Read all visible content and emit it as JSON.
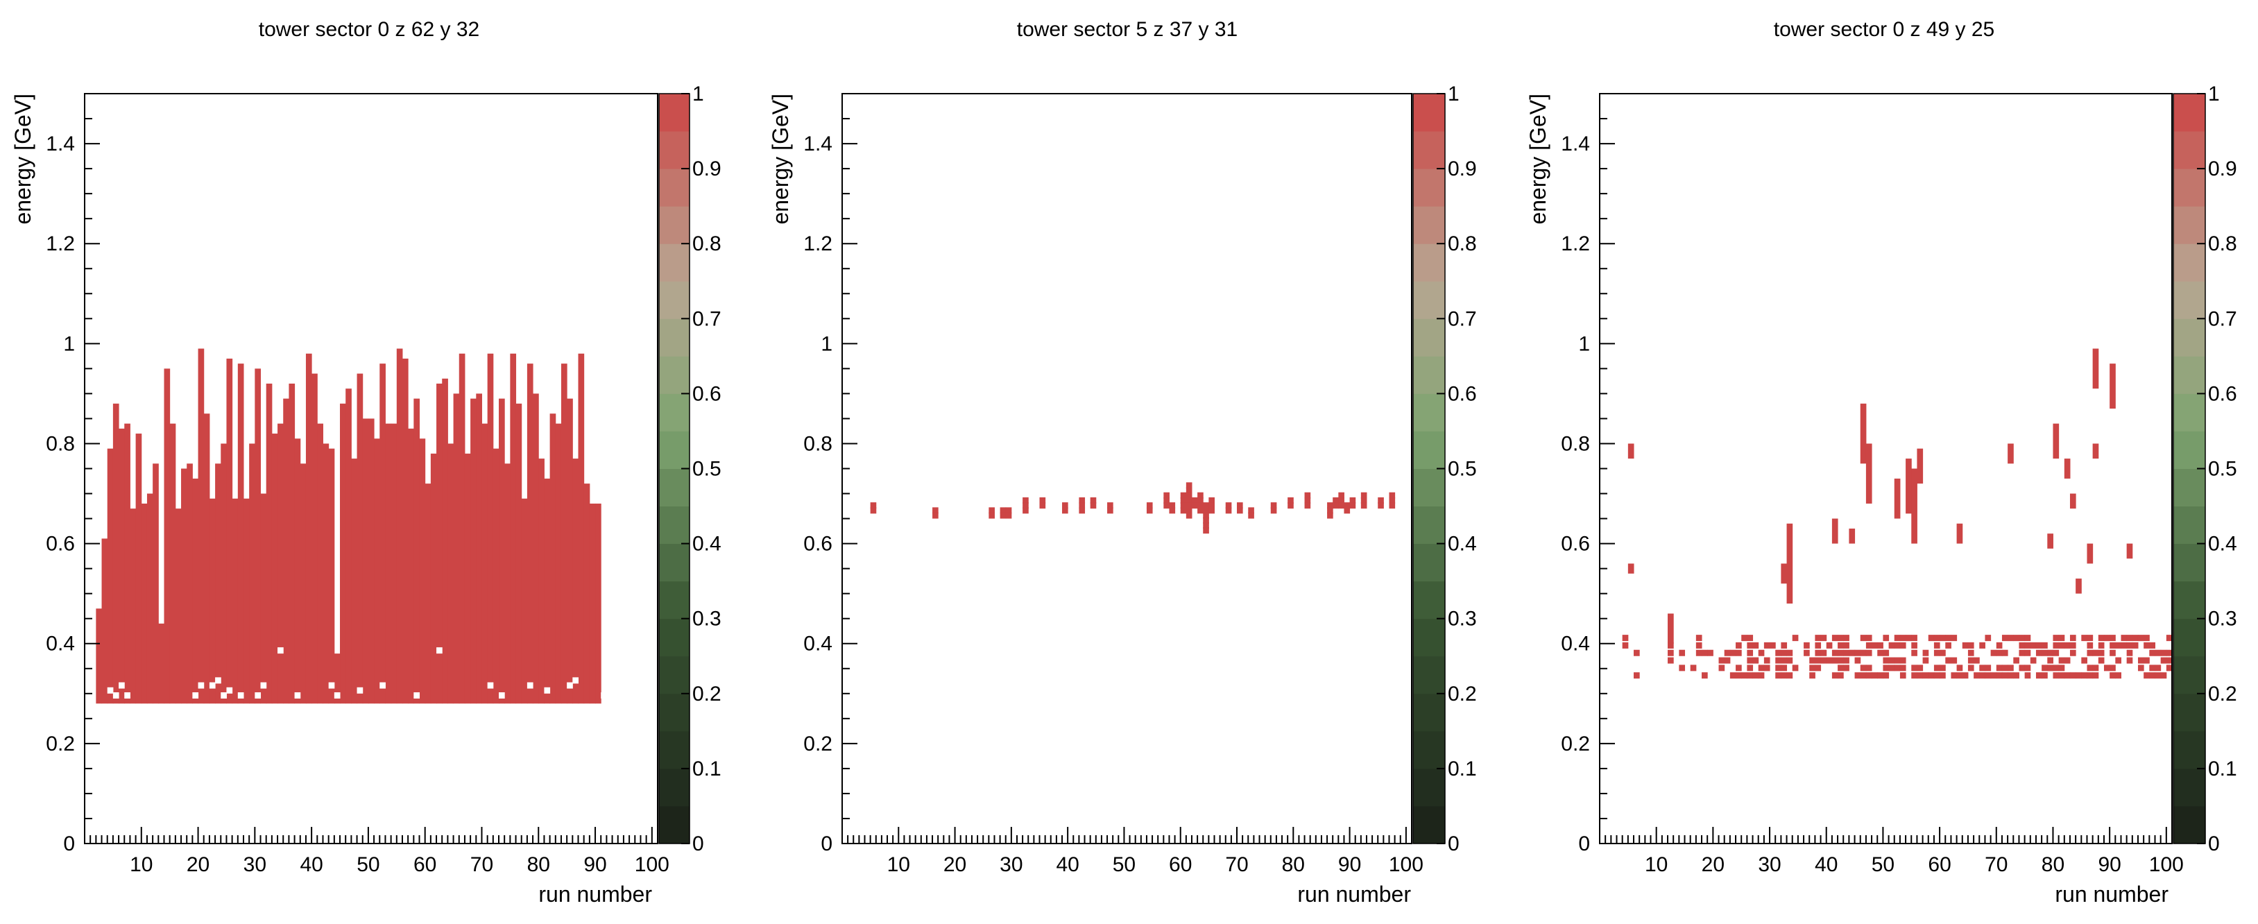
{
  "chart_data": [
    {
      "type": "heatmap",
      "title": "tower sector 0 z 62 y 32",
      "xlabel": "run number",
      "ylabel": "energy [GeV]",
      "xlim": [
        0,
        101
      ],
      "ylim": [
        0,
        1.5
      ],
      "zlim": [
        0,
        1
      ],
      "x_ticks": [
        "10",
        "20",
        "30",
        "40",
        "50",
        "60",
        "70",
        "80",
        "90",
        "100"
      ],
      "y_ticks": [
        "0",
        "0.2",
        "0.4",
        "0.6",
        "0.8",
        "1",
        "1.2",
        "1.4"
      ],
      "z_ticks": [
        "0",
        "0.1",
        "0.2",
        "0.3",
        "0.4",
        "0.5",
        "0.6",
        "0.7",
        "0.8",
        "0.9",
        "1"
      ],
      "grid": false,
      "colorbar": true,
      "series": [
        {
          "runs": [
            3,
            4,
            5,
            6,
            7,
            8,
            9,
            10,
            11,
            12,
            13,
            14,
            15,
            16,
            17,
            18,
            19,
            20,
            21,
            22,
            23,
            24,
            25,
            26,
            27,
            28,
            29,
            30,
            31,
            32,
            33,
            34,
            35,
            36,
            37,
            38,
            39,
            40,
            41,
            42,
            43,
            44,
            45,
            46,
            47,
            48,
            49,
            50,
            51,
            52,
            53,
            54,
            55,
            56,
            57,
            58,
            59,
            60,
            61,
            62,
            63,
            64,
            65,
            66,
            67,
            68,
            69,
            70,
            71,
            72,
            73,
            74,
            75,
            76,
            77,
            78,
            79,
            80,
            81,
            82,
            83,
            84,
            85,
            86,
            87,
            88,
            89,
            90,
            91,
            92,
            93,
            94,
            95,
            96,
            97,
            98,
            99,
            100,
            101
          ],
          "e_min": 0.28,
          "e_max": [
            0.47,
            0.61,
            0.79,
            0.88,
            0.83,
            0.84,
            0.67,
            0.82,
            0.68,
            0.7,
            0.76,
            0.44,
            0.95,
            0.84,
            0.67,
            0.75,
            0.76,
            0.73,
            0.99,
            0.86,
            0.69,
            0.76,
            0.8,
            0.97,
            0.69,
            0.96,
            0.69,
            0.8,
            0.95,
            0.7,
            0.92,
            0.82,
            0.84,
            0.89,
            0.92,
            0.81,
            0.76,
            0.98,
            0.94,
            0.84,
            0.8,
            0.79,
            0.38,
            0.88,
            0.91,
            0.77,
            0.94,
            0.85,
            0.85,
            0.81,
            0.96,
            0.84,
            0.84,
            0.99,
            0.97,
            0.83,
            0.89,
            0.81,
            0.72,
            0.78,
            0.92,
            0.93,
            0.8,
            0.9,
            0.98,
            0.78,
            0.89,
            0.9,
            0.84,
            0.98,
            0.79,
            0.89,
            0.76,
            0.98,
            0.88,
            0.69,
            0.96,
            0.9,
            0.77,
            0.73,
            0.86,
            0.84,
            0.96,
            0.89,
            0.77,
            0.98,
            0.72,
            0.68,
            0.68
          ],
          "gaps": [
            [
              5,
              0.3
            ],
            [
              6,
              0.29
            ],
            [
              7,
              0.31
            ],
            [
              8,
              0.29
            ],
            [
              20,
              0.29
            ],
            [
              21,
              0.31
            ],
            [
              23,
              0.31
            ],
            [
              24,
              0.32
            ],
            [
              25,
              0.29
            ],
            [
              26,
              0.3
            ],
            [
              28,
              0.29
            ],
            [
              31,
              0.29
            ],
            [
              32,
              0.31
            ],
            [
              35,
              0.38
            ],
            [
              38,
              0.29
            ],
            [
              44,
              0.31
            ],
            [
              45,
              0.29
            ],
            [
              49,
              0.3
            ],
            [
              53,
              0.31
            ],
            [
              59,
              0.29
            ],
            [
              63,
              0.38
            ],
            [
              72,
              0.31
            ],
            [
              74,
              0.29
            ],
            [
              79,
              0.31
            ],
            [
              82,
              0.3
            ],
            [
              86,
              0.31
            ],
            [
              87,
              0.32
            ],
            [
              92,
              0.29
            ],
            [
              95,
              0.29
            ]
          ]
        }
      ]
    },
    {
      "type": "heatmap",
      "title": "tower sector 5 z 37 y 31",
      "xlabel": "run number",
      "ylabel": "energy [GeV]",
      "xlim": [
        0,
        101
      ],
      "ylim": [
        0,
        1.5
      ],
      "zlim": [
        0,
        1
      ],
      "x_ticks": [
        "10",
        "20",
        "30",
        "40",
        "50",
        "60",
        "70",
        "80",
        "90",
        "100"
      ],
      "y_ticks": [
        "0",
        "0.2",
        "0.4",
        "0.6",
        "0.8",
        "1",
        "1.2",
        "1.4"
      ],
      "z_ticks": [
        "0",
        "0.1",
        "0.2",
        "0.3",
        "0.4",
        "0.5",
        "0.6",
        "0.7",
        "0.8",
        "0.9",
        "1"
      ],
      "grid": false,
      "colorbar": true,
      "cells": [
        [
          6,
          0.67
        ],
        [
          6,
          0.66
        ],
        [
          17,
          0.66
        ],
        [
          17,
          0.65
        ],
        [
          27,
          0.66
        ],
        [
          27,
          0.65
        ],
        [
          29,
          0.66
        ],
        [
          29,
          0.65
        ],
        [
          30,
          0.66
        ],
        [
          30,
          0.65
        ],
        [
          33,
          0.68
        ],
        [
          33,
          0.67
        ],
        [
          33,
          0.66
        ],
        [
          36,
          0.68
        ],
        [
          36,
          0.67
        ],
        [
          40,
          0.67
        ],
        [
          40,
          0.66
        ],
        [
          43,
          0.68
        ],
        [
          43,
          0.67
        ],
        [
          43,
          0.66
        ],
        [
          45,
          0.68
        ],
        [
          45,
          0.67
        ],
        [
          48,
          0.67
        ],
        [
          48,
          0.66
        ],
        [
          55,
          0.67
        ],
        [
          55,
          0.66
        ],
        [
          58,
          0.69
        ],
        [
          58,
          0.68
        ],
        [
          58,
          0.67
        ],
        [
          59,
          0.67
        ],
        [
          59,
          0.66
        ],
        [
          61,
          0.69
        ],
        [
          61,
          0.68
        ],
        [
          61,
          0.67
        ],
        [
          61,
          0.66
        ],
        [
          62,
          0.71
        ],
        [
          62,
          0.7
        ],
        [
          62,
          0.69
        ],
        [
          62,
          0.68
        ],
        [
          62,
          0.67
        ],
        [
          62,
          0.66
        ],
        [
          62,
          0.65
        ],
        [
          63,
          0.68
        ],
        [
          63,
          0.67
        ],
        [
          64,
          0.69
        ],
        [
          64,
          0.68
        ],
        [
          64,
          0.67
        ],
        [
          64,
          0.66
        ],
        [
          65,
          0.67
        ],
        [
          65,
          0.66
        ],
        [
          65,
          0.65
        ],
        [
          65,
          0.64
        ],
        [
          65,
          0.63
        ],
        [
          65,
          0.62
        ],
        [
          66,
          0.68
        ],
        [
          66,
          0.67
        ],
        [
          66,
          0.66
        ],
        [
          69,
          0.67
        ],
        [
          69,
          0.66
        ],
        [
          71,
          0.67
        ],
        [
          71,
          0.66
        ],
        [
          73,
          0.66
        ],
        [
          73,
          0.65
        ],
        [
          77,
          0.67
        ],
        [
          77,
          0.66
        ],
        [
          80,
          0.68
        ],
        [
          80,
          0.67
        ],
        [
          83,
          0.69
        ],
        [
          83,
          0.68
        ],
        [
          83,
          0.67
        ],
        [
          87,
          0.67
        ],
        [
          87,
          0.66
        ],
        [
          87,
          0.65
        ],
        [
          88,
          0.68
        ],
        [
          88,
          0.67
        ],
        [
          89,
          0.69
        ],
        [
          89,
          0.68
        ],
        [
          89,
          0.67
        ],
        [
          90,
          0.67
        ],
        [
          90,
          0.66
        ],
        [
          91,
          0.68
        ],
        [
          91,
          0.67
        ],
        [
          93,
          0.69
        ],
        [
          93,
          0.68
        ],
        [
          93,
          0.67
        ],
        [
          96,
          0.68
        ],
        [
          96,
          0.67
        ],
        [
          98,
          0.69
        ],
        [
          98,
          0.68
        ],
        [
          98,
          0.67
        ]
      ]
    },
    {
      "type": "heatmap",
      "title": "tower sector 0 z 49 y 25",
      "xlabel": "run number",
      "ylabel": "energy [GeV]",
      "xlim": [
        0,
        101
      ],
      "ylim": [
        0,
        1.5
      ],
      "zlim": [
        0,
        1
      ],
      "x_ticks": [
        "10",
        "20",
        "30",
        "40",
        "50",
        "60",
        "70",
        "80",
        "90",
        "100"
      ],
      "y_ticks": [
        "0",
        "0.2",
        "0.4",
        "0.6",
        "0.8",
        "1",
        "1.2",
        "1.4"
      ],
      "z_ticks": [
        "0",
        "0.1",
        "0.2",
        "0.3",
        "0.4",
        "0.5",
        "0.6",
        "0.7",
        "0.8",
        "0.9",
        "1"
      ],
      "grid": false,
      "colorbar": true,
      "columns": [
        [
          6,
          0.77,
          0.8
        ],
        [
          6,
          0.54,
          0.56
        ],
        [
          13,
          0.4,
          0.46
        ],
        [
          33,
          0.52,
          0.56
        ],
        [
          34,
          0.48,
          0.64
        ],
        [
          42,
          0.6,
          0.65
        ],
        [
          45,
          0.6,
          0.63
        ],
        [
          47,
          0.76,
          0.88
        ],
        [
          48,
          0.68,
          0.8
        ],
        [
          53,
          0.65,
          0.73
        ],
        [
          55,
          0.66,
          0.77
        ],
        [
          56,
          0.6,
          0.75
        ],
        [
          57,
          0.72,
          0.79
        ],
        [
          64,
          0.6,
          0.64
        ],
        [
          73,
          0.76,
          0.8
        ],
        [
          80,
          0.59,
          0.62
        ],
        [
          81,
          0.77,
          0.84
        ],
        [
          83,
          0.73,
          0.77
        ],
        [
          84,
          0.67,
          0.7
        ],
        [
          85,
          0.5,
          0.53
        ],
        [
          87,
          0.56,
          0.6
        ],
        [
          88,
          0.77,
          0.8
        ],
        [
          88,
          0.91,
          0.99
        ],
        [
          91,
          0.87,
          0.96
        ],
        [
          94,
          0.57,
          0.6
        ]
      ],
      "band_runs": [
        5,
        6,
        7,
        13,
        15,
        17,
        18,
        19,
        20,
        22,
        23,
        24,
        25,
        26,
        27,
        28,
        29,
        30,
        31,
        32,
        33,
        34,
        35,
        36,
        37,
        38,
        39,
        40,
        41,
        42,
        43,
        44,
        45,
        46,
        47,
        48,
        49,
        50,
        51,
        52,
        53,
        54,
        55,
        56,
        57,
        58,
        59,
        60,
        61,
        62,
        63,
        64,
        65,
        66,
        67,
        68,
        69,
        70,
        71,
        72,
        73,
        74,
        75,
        76,
        77,
        78,
        79,
        80,
        81,
        82,
        83,
        84,
        85,
        86,
        87,
        88,
        89,
        90,
        91,
        92,
        93,
        94,
        95,
        96,
        97,
        98,
        99,
        100,
        101
      ]
    }
  ]
}
